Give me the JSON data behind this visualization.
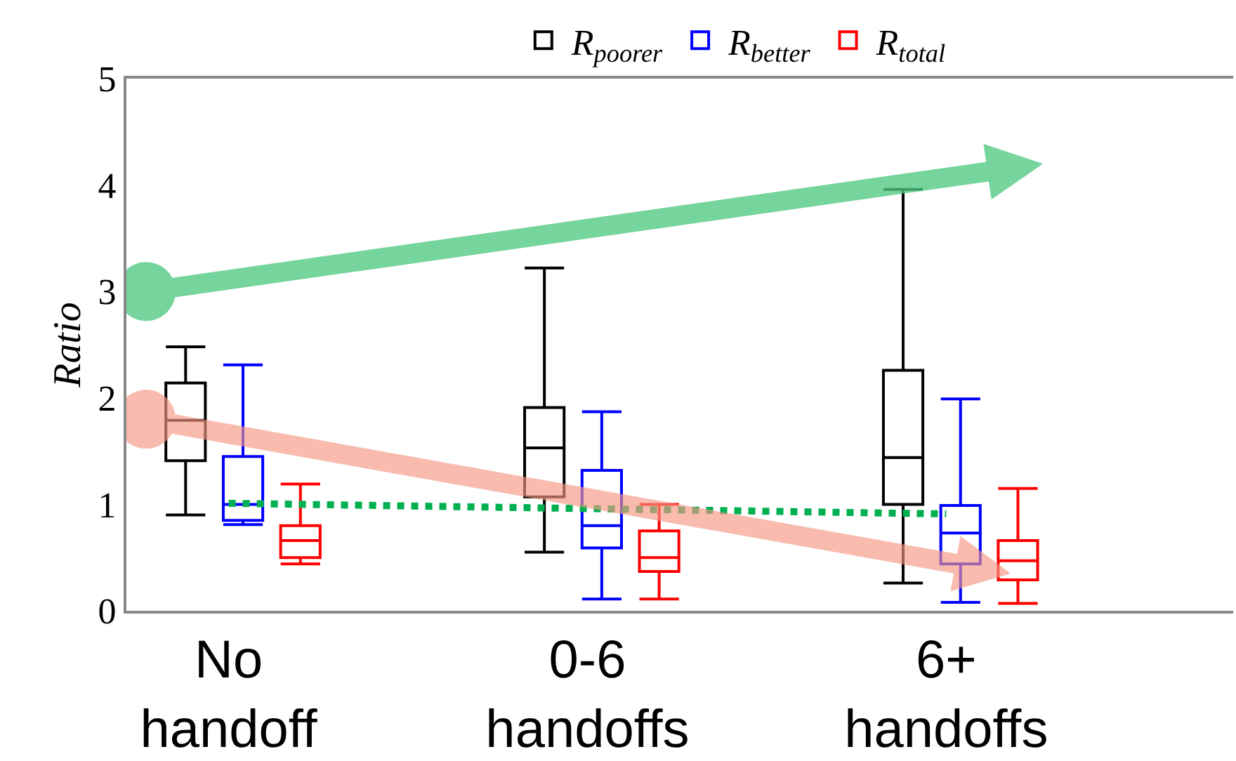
{
  "chart_data": {
    "type": "box",
    "ylabel": "Ratio",
    "categories": [
      "No handoff",
      "0-6 handoffs",
      "6+ handoffs"
    ],
    "series": [
      {
        "name": "R$_{poorer}$",
        "color": "#000000",
        "boxes": [
          {
            "low": 0.9,
            "q1": 1.41,
            "median": 1.79,
            "q3": 2.14,
            "high": 2.48
          },
          {
            "low": 0.55,
            "q1": 1.07,
            "median": 1.53,
            "q3": 1.91,
            "high": 3.22
          },
          {
            "low": 0.26,
            "q1": 1.0,
            "median": 1.44,
            "q3": 2.26,
            "high": 3.96
          }
        ]
      },
      {
        "name": "R$_{better}$",
        "color": "#0000ff",
        "boxes": [
          {
            "low": 0.81,
            "q1": 0.85,
            "median": 1.0,
            "q3": 1.45,
            "high": 2.31
          },
          {
            "low": 0.11,
            "q1": 0.59,
            "median": 0.8,
            "q3": 1.32,
            "high": 1.87
          },
          {
            "low": 0.08,
            "q1": 0.44,
            "median": 0.73,
            "q3": 0.99,
            "high": 1.99
          }
        ]
      },
      {
        "name": "R$_{total}$",
        "color": "#ff0000",
        "boxes": [
          {
            "low": 0.44,
            "q1": 0.5,
            "median": 0.66,
            "q3": 0.8,
            "high": 1.19
          },
          {
            "low": 0.11,
            "q1": 0.37,
            "median": 0.5,
            "q3": 0.75,
            "high": 1.0
          },
          {
            "low": 0.07,
            "q1": 0.29,
            "median": 0.47,
            "q3": 0.66,
            "high": 1.15
          }
        ]
      },
      {
        "type": "line",
        "color": "#00b050",
        "line_style": "dotted",
        "values": [
          1.01,
          0.96,
          0.91
        ]
      }
    ],
    "ylim": [
      0,
      5
    ],
    "yticks": [
      0,
      1,
      2,
      3,
      4,
      5
    ],
    "legend": "top"
  }
}
